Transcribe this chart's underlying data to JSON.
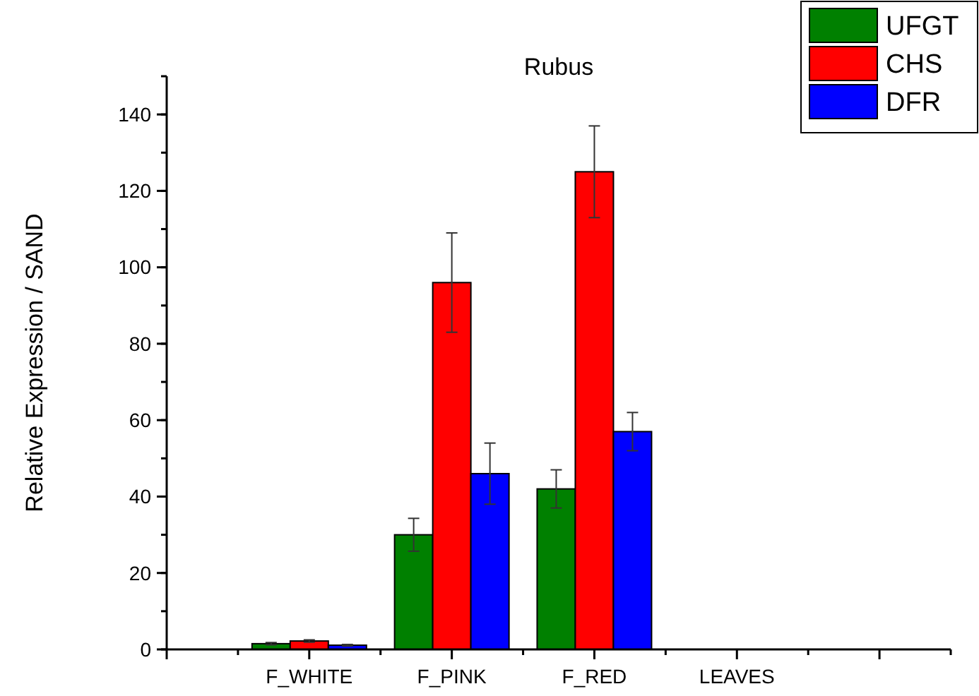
{
  "chart_data": {
    "type": "bar",
    "title": "Rubus",
    "ylabel": "Relative Expression / SAND",
    "categories": [
      null,
      "F_WHITE",
      "F_PINK",
      "F_RED",
      "LEAVES",
      null
    ],
    "series": [
      {
        "name": "UFGT",
        "color": "#008000",
        "values": [
          null,
          1.5,
          30,
          42,
          null,
          null
        ],
        "errors": [
          null,
          0.3,
          4.3,
          5,
          null,
          null
        ]
      },
      {
        "name": "CHS",
        "color": "#ff0000",
        "values": [
          null,
          2.2,
          96,
          125,
          null,
          null
        ],
        "errors": [
          null,
          0.3,
          13,
          12,
          null,
          null
        ]
      },
      {
        "name": "DFR",
        "color": "#0000ff",
        "values": [
          null,
          1.1,
          46,
          57,
          null,
          null
        ],
        "errors": [
          null,
          0.2,
          8,
          5,
          null,
          null
        ]
      }
    ],
    "ylim": [
      0,
      150
    ],
    "yticks": [
      0,
      20,
      40,
      60,
      80,
      100,
      120,
      140
    ],
    "grid": false,
    "legend": "top right"
  }
}
